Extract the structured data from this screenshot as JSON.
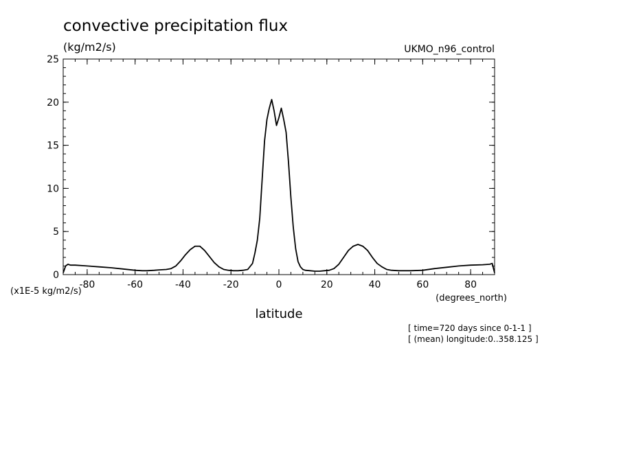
{
  "chart_data": {
    "type": "line",
    "title": "convective precipitation flux",
    "units_label": "(kg/m2/s)",
    "dataset_label": "UKMO_n96_control",
    "xlabel": "latitude",
    "x_units_label": "(degrees_north)",
    "y_scale_label": "(x1E-5 kg/m2/s)",
    "footnote_time": "[ time=720 days since 0-1-1 ]",
    "footnote_longitude": "[ (mean) longitude:0..358.125 ]",
    "xlim": [
      -90,
      90
    ],
    "ylim": [
      0,
      25
    ],
    "x_ticks": [
      -80,
      -60,
      -40,
      -20,
      0,
      20,
      40,
      60,
      80
    ],
    "x_tick_labels": [
      "-80",
      "-60",
      "-40",
      "-20",
      "0",
      "20",
      "40",
      "60",
      "80"
    ],
    "y_ticks": [
      0,
      5,
      10,
      15,
      20,
      25
    ],
    "y_tick_labels": [
      "0",
      "5",
      "10",
      "15",
      "20",
      "25"
    ],
    "grid": false,
    "line_color": "#000000",
    "series": [
      {
        "x": [
          -90,
          -89,
          -88,
          -87,
          -85,
          -80,
          -75,
          -70,
          -65,
          -60,
          -57,
          -55,
          -52,
          -50,
          -47,
          -45,
          -43,
          -41,
          -39,
          -37,
          -35,
          -33,
          -31,
          -29,
          -27,
          -25,
          -23,
          -21,
          -19,
          -17,
          -15,
          -13,
          -11,
          -10,
          -9,
          -8,
          -7,
          -6,
          -5,
          -4,
          -3,
          -2,
          -1,
          0,
          1,
          2,
          3,
          4,
          5,
          6,
          7,
          8,
          9,
          10,
          11,
          13,
          15,
          17,
          19,
          21,
          23,
          25,
          27,
          29,
          31,
          33,
          35,
          37,
          39,
          41,
          43,
          45,
          47,
          50,
          55,
          60,
          65,
          70,
          75,
          80,
          85,
          88,
          89,
          90
        ],
        "y": [
          0.2,
          1.0,
          1.2,
          1.1,
          1.1,
          1.0,
          0.9,
          0.8,
          0.65,
          0.5,
          0.45,
          0.45,
          0.5,
          0.55,
          0.6,
          0.7,
          1.0,
          1.6,
          2.3,
          2.9,
          3.3,
          3.3,
          2.8,
          2.1,
          1.4,
          0.9,
          0.6,
          0.5,
          0.45,
          0.45,
          0.5,
          0.6,
          1.3,
          2.5,
          4.0,
          6.5,
          11.0,
          15.5,
          18.0,
          19.3,
          20.3,
          19.0,
          17.3,
          18.2,
          19.3,
          18.0,
          16.5,
          13.0,
          9.0,
          5.5,
          3.0,
          1.5,
          0.9,
          0.6,
          0.5,
          0.45,
          0.4,
          0.4,
          0.45,
          0.5,
          0.7,
          1.2,
          2.0,
          2.8,
          3.3,
          3.5,
          3.3,
          2.8,
          2.0,
          1.3,
          0.9,
          0.6,
          0.5,
          0.45,
          0.45,
          0.5,
          0.7,
          0.85,
          1.0,
          1.1,
          1.15,
          1.2,
          1.3,
          0.2
        ]
      }
    ]
  }
}
